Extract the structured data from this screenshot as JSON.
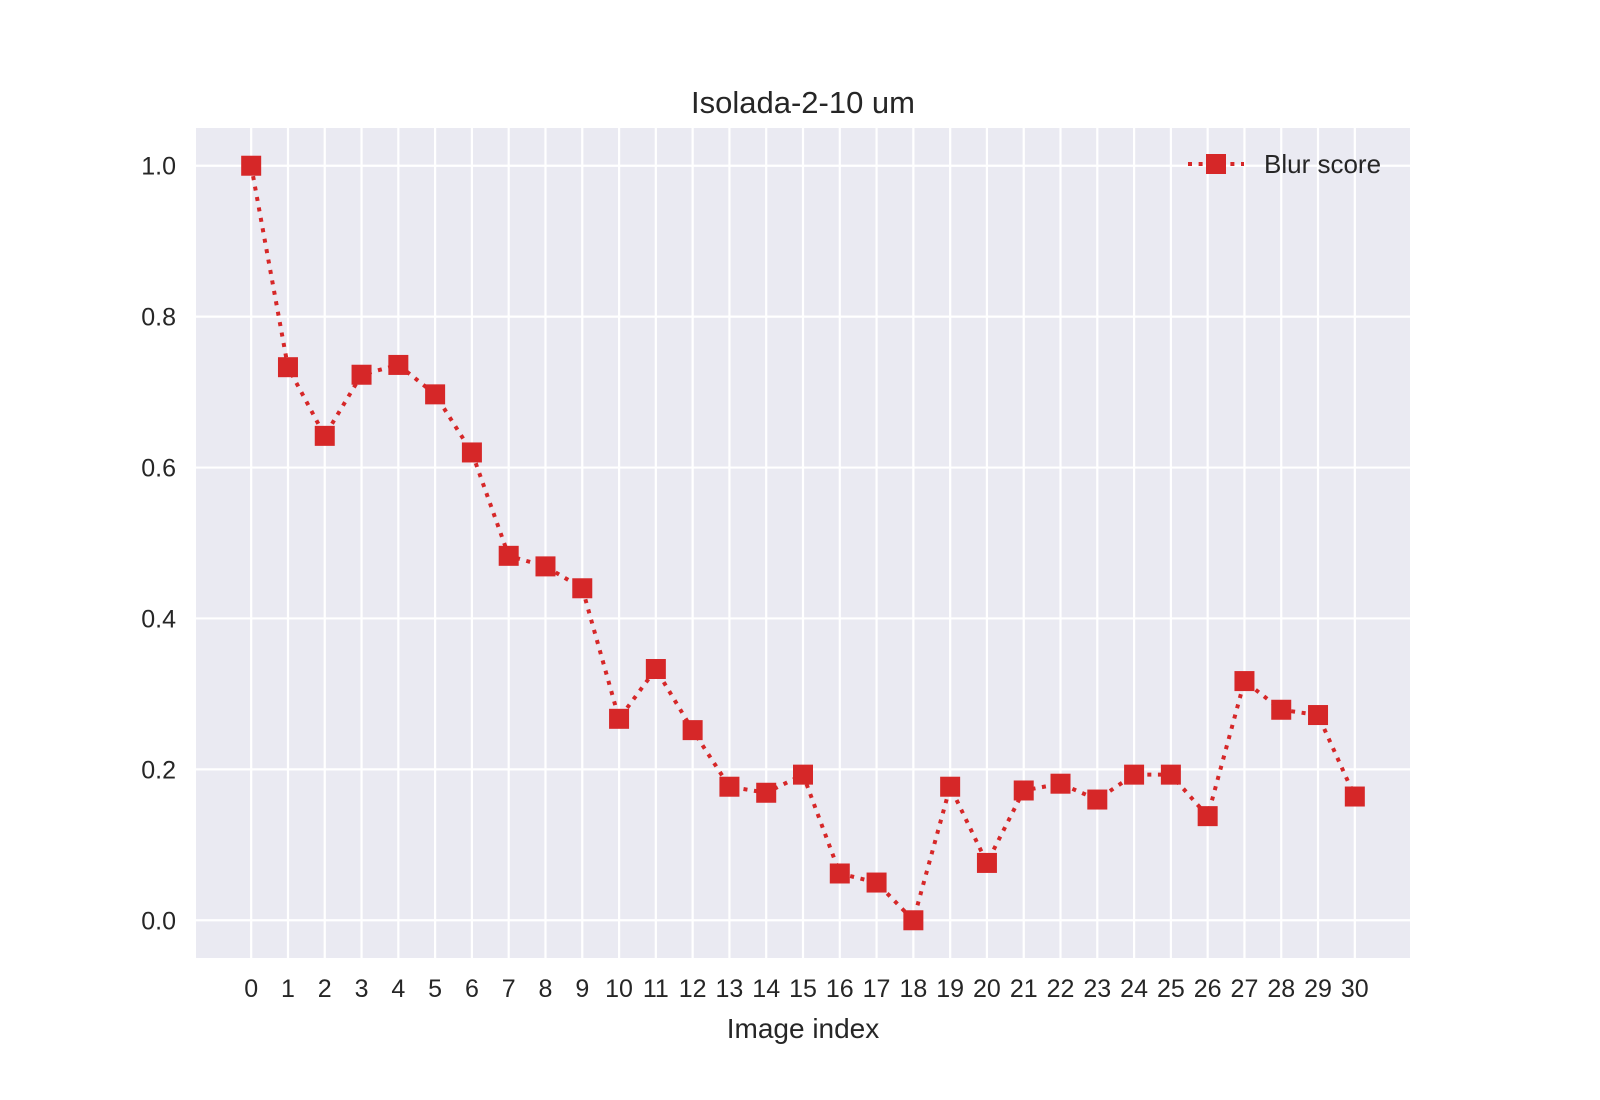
{
  "chart_data": {
    "type": "line",
    "title": "Isolada-2-10 um",
    "xlabel": "Image index",
    "ylabel": "",
    "x": [
      0,
      1,
      2,
      3,
      4,
      5,
      6,
      7,
      8,
      9,
      10,
      11,
      12,
      13,
      14,
      15,
      16,
      17,
      18,
      19,
      20,
      21,
      22,
      23,
      24,
      25,
      26,
      27,
      28,
      29,
      30
    ],
    "x_tick_labels": [
      "0",
      "1",
      "2",
      "3",
      "4",
      "5",
      "6",
      "7",
      "8",
      "9",
      "10",
      "11",
      "12",
      "13",
      "14",
      "15",
      "16",
      "17",
      "18",
      "19",
      "20",
      "21",
      "22",
      "23",
      "24",
      "25",
      "26",
      "27",
      "28",
      "29",
      "30"
    ],
    "y_ticks": [
      0.0,
      0.2,
      0.4,
      0.6,
      0.8,
      1.0
    ],
    "y_tick_labels": [
      "0.0",
      "0.2",
      "0.4",
      "0.6",
      "0.8",
      "1.0"
    ],
    "xlim": [
      -1.5,
      31.5
    ],
    "ylim": [
      -0.05,
      1.05
    ],
    "grid": true,
    "legend_position": "top-right",
    "series": [
      {
        "name": "Blur score",
        "color": "#d62728",
        "line_style": "dotted",
        "marker": "square",
        "values": [
          1.0,
          0.733,
          0.642,
          0.723,
          0.736,
          0.697,
          0.62,
          0.483,
          0.469,
          0.44,
          0.267,
          0.333,
          0.252,
          0.177,
          0.169,
          0.193,
          0.062,
          0.05,
          0.0,
          0.177,
          0.076,
          0.172,
          0.181,
          0.16,
          0.193,
          0.193,
          0.138,
          0.317,
          0.279,
          0.272,
          0.164
        ]
      }
    ],
    "plot_background": "#eaeaf2",
    "grid_color": "#ffffff"
  }
}
